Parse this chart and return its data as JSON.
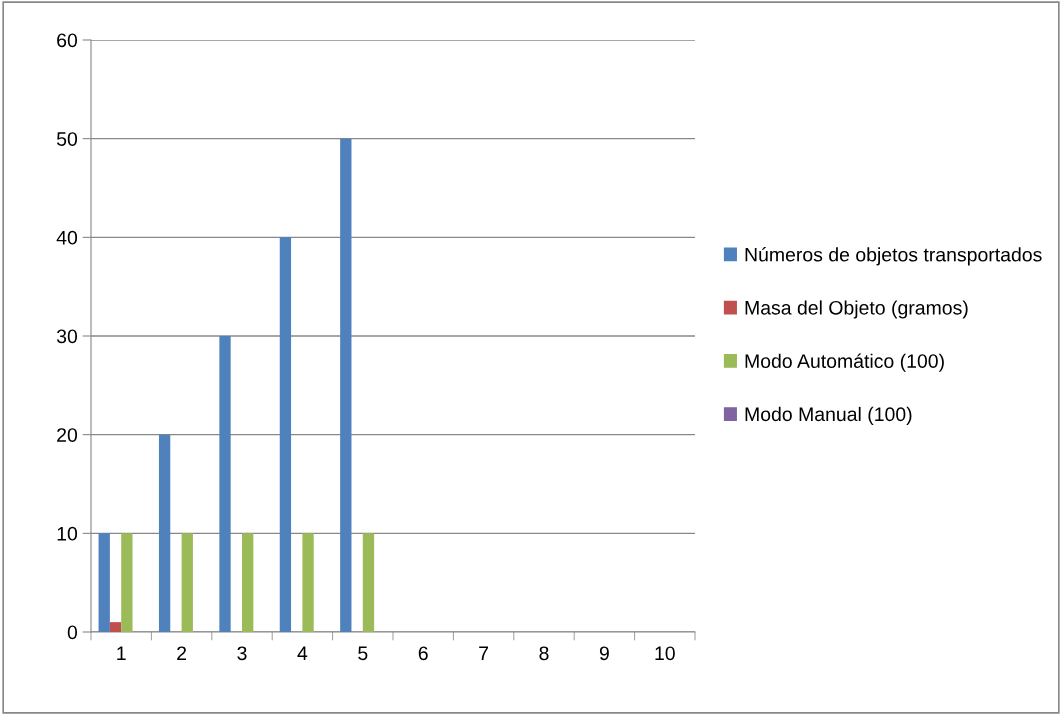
{
  "chart_data": {
    "type": "bar",
    "categories": [
      "1",
      "2",
      "3",
      "4",
      "5",
      "6",
      "7",
      "8",
      "9",
      "10"
    ],
    "series": [
      {
        "name": "Números de objetos transportados",
        "color": "#4f81bd",
        "values": [
          10,
          20,
          30,
          40,
          50,
          null,
          null,
          null,
          null,
          null
        ]
      },
      {
        "name": "Masa del Objeto (gramos)",
        "color": "#c0504d",
        "values": [
          1,
          null,
          null,
          null,
          null,
          null,
          null,
          null,
          null,
          null
        ]
      },
      {
        "name": "Modo Automático (100)",
        "color": "#9bbb59",
        "values": [
          10,
          10,
          10,
          10,
          10,
          null,
          null,
          null,
          null,
          null
        ]
      },
      {
        "name": "Modo Manual (100)",
        "color": "#8064a2",
        "values": [
          null,
          null,
          null,
          null,
          null,
          null,
          null,
          null,
          null,
          null
        ]
      }
    ],
    "ylim": [
      0,
      60
    ],
    "yticks": [
      0,
      10,
      20,
      30,
      40,
      50,
      60
    ],
    "grid": "y",
    "legend": "right"
  }
}
